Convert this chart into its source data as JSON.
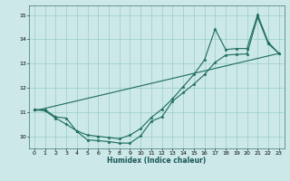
{
  "xlabel": "Humidex (Indice chaleur)",
  "bg_color": "#cce8e8",
  "grid_color": "#99cccc",
  "line_color": "#1a6b5a",
  "xlim": [
    -0.5,
    23.5
  ],
  "ylim": [
    9.5,
    15.4
  ],
  "yticks": [
    10,
    11,
    12,
    13,
    14,
    15
  ],
  "xticks": [
    0,
    1,
    2,
    3,
    4,
    5,
    6,
    7,
    8,
    9,
    10,
    11,
    12,
    13,
    14,
    15,
    16,
    17,
    18,
    19,
    20,
    21,
    22,
    23
  ],
  "series1_x": [
    0,
    1,
    2,
    3,
    4,
    5,
    6,
    7,
    8,
    9,
    10,
    11,
    12,
    13,
    14,
    15,
    16,
    17,
    18,
    19,
    20,
    21,
    22,
    23
  ],
  "series1_y": [
    11.1,
    11.1,
    10.8,
    10.75,
    10.2,
    9.85,
    9.82,
    9.78,
    9.72,
    9.72,
    10.02,
    10.62,
    10.8,
    11.45,
    11.8,
    12.15,
    12.55,
    13.05,
    13.35,
    13.38,
    13.4,
    14.92,
    13.82,
    13.42
  ],
  "series2_x": [
    0,
    1,
    2,
    3,
    4,
    5,
    6,
    7,
    8,
    9,
    10,
    11,
    12,
    13,
    14,
    15,
    16,
    17,
    18,
    19,
    20,
    21,
    22,
    23
  ],
  "series2_y": [
    11.1,
    11.05,
    10.75,
    10.5,
    10.22,
    10.05,
    10.0,
    9.95,
    9.9,
    10.05,
    10.32,
    10.78,
    11.12,
    11.55,
    12.05,
    12.55,
    13.15,
    14.42,
    13.58,
    13.62,
    13.62,
    15.02,
    13.88,
    13.42
  ],
  "trend_x": [
    0,
    23
  ],
  "trend_y": [
    11.05,
    13.42
  ]
}
